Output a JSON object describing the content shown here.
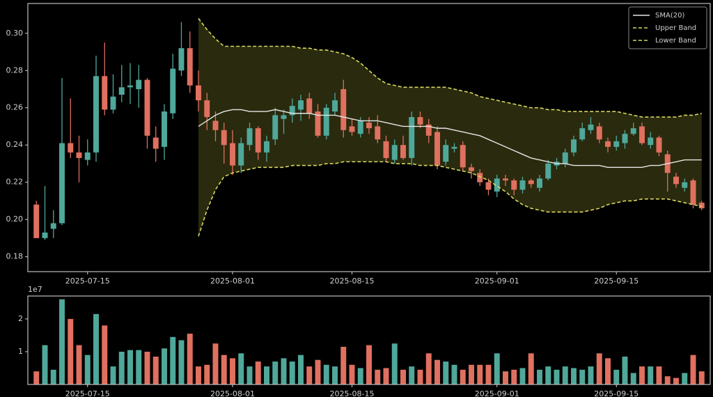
{
  "chart_data": [
    {
      "type": "candlestick",
      "x": [
        "2025-07-09",
        "2025-07-10",
        "2025-07-11",
        "2025-07-12",
        "2025-07-13",
        "2025-07-14",
        "2025-07-15",
        "2025-07-16",
        "2025-07-17",
        "2025-07-18",
        "2025-07-19",
        "2025-07-20",
        "2025-07-21",
        "2025-07-22",
        "2025-07-23",
        "2025-07-24",
        "2025-07-25",
        "2025-07-26",
        "2025-07-27",
        "2025-07-28",
        "2025-07-29",
        "2025-07-30",
        "2025-07-31",
        "2025-08-01",
        "2025-08-02",
        "2025-08-03",
        "2025-08-04",
        "2025-08-05",
        "2025-08-06",
        "2025-08-07",
        "2025-08-08",
        "2025-08-09",
        "2025-08-10",
        "2025-08-11",
        "2025-08-12",
        "2025-08-13",
        "2025-08-14",
        "2025-08-15",
        "2025-08-16",
        "2025-08-17",
        "2025-08-18",
        "2025-08-19",
        "2025-08-20",
        "2025-08-21",
        "2025-08-22",
        "2025-08-23",
        "2025-08-24",
        "2025-08-25",
        "2025-08-26",
        "2025-08-27",
        "2025-08-28",
        "2025-08-29",
        "2025-08-30",
        "2025-08-31",
        "2025-09-01",
        "2025-09-02",
        "2025-09-03",
        "2025-09-04",
        "2025-09-05",
        "2025-09-06",
        "2025-09-07",
        "2025-09-08",
        "2025-09-09",
        "2025-09-10",
        "2025-09-11",
        "2025-09-12",
        "2025-09-13",
        "2025-09-14",
        "2025-09-15",
        "2025-09-16",
        "2025-09-17",
        "2025-09-18",
        "2025-09-19",
        "2025-09-20",
        "2025-09-21",
        "2025-09-22",
        "2025-09-23",
        "2025-09-24",
        "2025-09-25"
      ],
      "open": [
        0.208,
        0.19,
        0.195,
        0.198,
        0.241,
        0.236,
        0.232,
        0.236,
        0.277,
        0.259,
        0.267,
        0.271,
        0.27,
        0.275,
        0.244,
        0.239,
        0.257,
        0.28,
        0.292,
        0.272,
        0.264,
        0.253,
        0.248,
        0.241,
        0.229,
        0.24,
        0.249,
        0.236,
        0.243,
        0.254,
        0.256,
        0.259,
        0.265,
        0.258,
        0.245,
        0.258,
        0.27,
        0.25,
        0.246,
        0.252,
        0.25,
        0.242,
        0.232,
        0.24,
        0.233,
        0.255,
        0.251,
        0.247,
        0.231,
        0.238,
        0.24,
        0.228,
        0.225,
        0.22,
        0.215,
        0.222,
        0.221,
        0.216,
        0.221,
        0.217,
        0.222,
        0.229,
        0.23,
        0.236,
        0.243,
        0.248,
        0.25,
        0.242,
        0.239,
        0.241,
        0.246,
        0.25,
        0.24,
        0.244,
        0.235,
        0.223,
        0.217,
        0.221,
        0.209
      ],
      "high": [
        0.21,
        0.218,
        0.205,
        0.276,
        0.265,
        0.245,
        0.243,
        0.288,
        0.295,
        0.278,
        0.283,
        0.284,
        0.283,
        0.276,
        0.25,
        0.262,
        0.289,
        0.306,
        0.301,
        0.28,
        0.268,
        0.258,
        0.252,
        0.248,
        0.244,
        0.252,
        0.25,
        0.245,
        0.26,
        0.259,
        0.265,
        0.267,
        0.268,
        0.262,
        0.262,
        0.268,
        0.275,
        0.254,
        0.255,
        0.255,
        0.256,
        0.245,
        0.243,
        0.245,
        0.258,
        0.258,
        0.254,
        0.25,
        0.243,
        0.241,
        0.242,
        0.23,
        0.227,
        0.222,
        0.224,
        0.224,
        0.222,
        0.223,
        0.222,
        0.224,
        0.232,
        0.233,
        0.238,
        0.245,
        0.252,
        0.255,
        0.252,
        0.244,
        0.245,
        0.248,
        0.252,
        0.252,
        0.247,
        0.245,
        0.237,
        0.225,
        0.222,
        0.222,
        0.21
      ],
      "low": [
        0.19,
        0.189,
        0.19,
        0.197,
        0.233,
        0.22,
        0.229,
        0.231,
        0.256,
        0.257,
        0.263,
        0.262,
        0.26,
        0.238,
        0.231,
        0.232,
        0.254,
        0.277,
        0.268,
        0.258,
        0.248,
        0.242,
        0.23,
        0.224,
        0.225,
        0.237,
        0.232,
        0.231,
        0.24,
        0.246,
        0.252,
        0.253,
        0.254,
        0.244,
        0.243,
        0.256,
        0.244,
        0.245,
        0.244,
        0.246,
        0.241,
        0.231,
        0.23,
        0.232,
        0.229,
        0.249,
        0.241,
        0.227,
        0.229,
        0.236,
        0.226,
        0.222,
        0.218,
        0.213,
        0.212,
        0.218,
        0.213,
        0.214,
        0.217,
        0.215,
        0.221,
        0.227,
        0.228,
        0.234,
        0.242,
        0.246,
        0.241,
        0.236,
        0.237,
        0.238,
        0.245,
        0.24,
        0.238,
        0.234,
        0.215,
        0.217,
        0.215,
        0.206,
        0.205
      ],
      "close": [
        0.19,
        0.193,
        0.198,
        0.241,
        0.236,
        0.233,
        0.236,
        0.277,
        0.259,
        0.266,
        0.271,
        0.272,
        0.275,
        0.245,
        0.238,
        0.258,
        0.281,
        0.292,
        0.272,
        0.264,
        0.255,
        0.248,
        0.24,
        0.229,
        0.241,
        0.249,
        0.236,
        0.242,
        0.256,
        0.256,
        0.261,
        0.264,
        0.257,
        0.245,
        0.26,
        0.264,
        0.248,
        0.247,
        0.253,
        0.249,
        0.243,
        0.233,
        0.24,
        0.233,
        0.255,
        0.251,
        0.245,
        0.229,
        0.24,
        0.239,
        0.228,
        0.226,
        0.22,
        0.216,
        0.222,
        0.221,
        0.216,
        0.221,
        0.219,
        0.222,
        0.23,
        0.231,
        0.236,
        0.243,
        0.249,
        0.251,
        0.243,
        0.239,
        0.242,
        0.246,
        0.249,
        0.241,
        0.244,
        0.236,
        0.225,
        0.219,
        0.22,
        0.208,
        0.206
      ],
      "up_color": "#4fa89a",
      "down_color": "#e0705f",
      "series": [
        {
          "name": "SMA(20)",
          "color": "#e6e6e6",
          "style": "solid",
          "values": [
            null,
            null,
            null,
            null,
            null,
            null,
            null,
            null,
            null,
            null,
            null,
            null,
            null,
            null,
            null,
            null,
            null,
            null,
            null,
            0.25,
            0.253,
            0.256,
            0.258,
            0.259,
            0.259,
            0.258,
            0.258,
            0.258,
            0.259,
            0.258,
            0.257,
            0.257,
            0.257,
            0.256,
            0.256,
            0.256,
            0.255,
            0.254,
            0.253,
            0.253,
            0.253,
            0.252,
            0.251,
            0.25,
            0.25,
            0.25,
            0.25,
            0.249,
            0.249,
            0.248,
            0.247,
            0.246,
            0.245,
            0.243,
            0.241,
            0.239,
            0.237,
            0.235,
            0.233,
            0.232,
            0.231,
            0.23,
            0.23,
            0.229,
            0.229,
            0.229,
            0.229,
            0.228,
            0.228,
            0.228,
            0.228,
            0.228,
            0.229,
            0.229,
            0.23,
            0.231,
            0.232,
            0.232,
            0.232
          ]
        },
        {
          "name": "Upper Band",
          "color": "#d8d860",
          "style": "dashed",
          "values": [
            null,
            null,
            null,
            null,
            null,
            null,
            null,
            null,
            null,
            null,
            null,
            null,
            null,
            null,
            null,
            null,
            null,
            null,
            null,
            0.308,
            0.302,
            0.297,
            0.293,
            0.293,
            0.293,
            0.293,
            0.293,
            0.293,
            0.293,
            0.293,
            0.293,
            0.292,
            0.292,
            0.291,
            0.291,
            0.29,
            0.289,
            0.287,
            0.284,
            0.28,
            0.276,
            0.273,
            0.272,
            0.271,
            0.271,
            0.271,
            0.271,
            0.271,
            0.271,
            0.27,
            0.269,
            0.268,
            0.266,
            0.265,
            0.264,
            0.263,
            0.262,
            0.261,
            0.26,
            0.26,
            0.259,
            0.259,
            0.258,
            0.258,
            0.258,
            0.258,
            0.258,
            0.258,
            0.258,
            0.257,
            0.256,
            0.255,
            0.255,
            0.255,
            0.255,
            0.255,
            0.256,
            0.256,
            0.257
          ]
        },
        {
          "name": "Lower Band",
          "color": "#d8d860",
          "style": "dashed",
          "values": [
            null,
            null,
            null,
            null,
            null,
            null,
            null,
            null,
            null,
            null,
            null,
            null,
            null,
            null,
            null,
            null,
            null,
            null,
            null,
            0.191,
            0.205,
            0.216,
            0.223,
            0.225,
            0.226,
            0.227,
            0.228,
            0.228,
            0.228,
            0.228,
            0.229,
            0.229,
            0.229,
            0.229,
            0.23,
            0.23,
            0.231,
            0.231,
            0.231,
            0.231,
            0.231,
            0.231,
            0.23,
            0.23,
            0.23,
            0.229,
            0.229,
            0.229,
            0.228,
            0.227,
            0.226,
            0.225,
            0.223,
            0.221,
            0.218,
            0.215,
            0.211,
            0.208,
            0.206,
            0.205,
            0.204,
            0.204,
            0.204,
            0.204,
            0.204,
            0.205,
            0.206,
            0.208,
            0.209,
            0.21,
            0.21,
            0.211,
            0.211,
            0.211,
            0.211,
            0.21,
            0.209,
            0.208,
            0.207
          ]
        }
      ],
      "band_fill": "#2a2a0e",
      "xlim": [
        "2025-07-08",
        "2025-09-26"
      ],
      "xticks": [
        "2025-07-15",
        "2025-08-01",
        "2025-08-15",
        "2025-09-01",
        "2025-09-15"
      ],
      "ylim": [
        0.172,
        0.316
      ],
      "yticks": [
        0.18,
        {
          "value": 0.2,
          "label": "0.20"
        },
        0.22,
        0.24,
        0.26,
        0.28,
        {
          "value": 0.3,
          "label": "0.30"
        }
      ],
      "legend": "upper right"
    },
    {
      "type": "volume",
      "values": [
        0.4,
        1.2,
        0.45,
        2.6,
        2.0,
        1.2,
        0.9,
        2.15,
        1.8,
        0.55,
        1.0,
        1.05,
        1.05,
        1.0,
        0.85,
        1.1,
        1.45,
        1.35,
        1.55,
        0.55,
        0.6,
        1.25,
        0.9,
        0.8,
        0.95,
        0.55,
        0.7,
        0.55,
        0.7,
        0.8,
        0.7,
        0.9,
        0.55,
        0.75,
        0.6,
        0.55,
        1.15,
        0.6,
        0.5,
        1.2,
        0.45,
        0.5,
        1.25,
        0.45,
        0.55,
        0.45,
        0.95,
        0.75,
        0.7,
        0.6,
        0.45,
        0.6,
        0.6,
        0.6,
        0.95,
        0.4,
        0.45,
        0.5,
        0.95,
        0.45,
        0.55,
        0.45,
        0.55,
        0.5,
        0.45,
        0.55,
        0.95,
        0.8,
        0.45,
        0.85,
        0.35,
        0.55,
        0.55,
        0.55,
        0.25,
        0.2,
        0.35,
        0.9,
        0.4
      ],
      "offset_label": "1e7",
      "xlim": [
        "2025-07-08",
        "2025-09-26"
      ],
      "xticks": [
        "2025-07-15",
        "2025-08-01",
        "2025-08-15",
        "2025-09-01",
        "2025-09-15"
      ],
      "ylim": [
        0,
        2.7
      ],
      "yticks": [
        1,
        2
      ]
    }
  ]
}
